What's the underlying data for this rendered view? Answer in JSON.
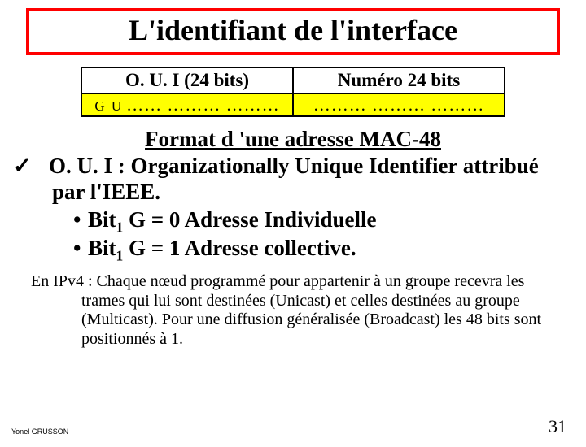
{
  "colors": {
    "title_border": "#ff0000",
    "data_row_bg": "#ffff00"
  },
  "title": "L'identifiant de l'interface",
  "table": {
    "header_left": "O. U. I (24 bits)",
    "header_right": "Numéro 24 bits",
    "gu_label": "G U",
    "dots_left": "……  ………  ………",
    "dots_right": "………  ………  ………"
  },
  "format_title": "Format d 'une adresse MAC-48",
  "oui_text": "O. U. I : Organizationally Unique Identifier attribué par l'IEEE.",
  "bit_prefix": "Bit",
  "bit_sub": "1",
  "bit1_line": " G = 0 Adresse Individuelle",
  "bit2_line": " G = 1 Adresse collective.",
  "ipv4_text": "En IPv4 : Chaque nœud programmé pour appartenir à un groupe recevra les trames qui lui sont destinées (Unicast) et celles destinées au groupe (Multicast). Pour une diffusion généralisée (Broadcast) les 48 bits sont positionnés à 1.",
  "footer_author": "Yonel GRUSSON",
  "page_number": "31"
}
